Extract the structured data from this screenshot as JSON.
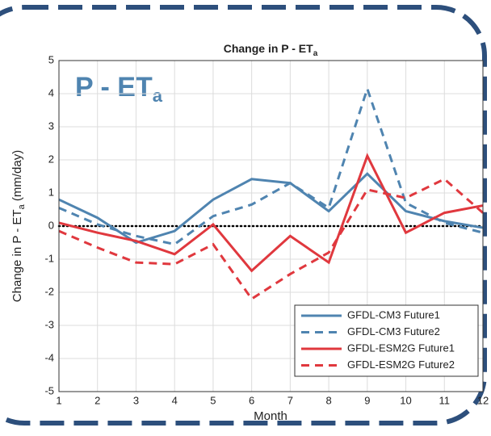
{
  "chart_data": {
    "type": "line",
    "title": {
      "text": "Change in P - ET",
      "sub": "a"
    },
    "overlay_label": {
      "text": "P - ET",
      "sub": "a"
    },
    "xlabel": "Month",
    "ylabel": {
      "text": "Change in P - ET",
      "sub": "a",
      "unit": " (mm/day)"
    },
    "x": [
      1,
      2,
      3,
      4,
      5,
      6,
      7,
      8,
      9,
      10,
      11,
      12
    ],
    "xlim": [
      1,
      12
    ],
    "xticks": [
      1,
      2,
      3,
      4,
      5,
      6,
      7,
      8,
      9,
      10,
      11,
      12
    ],
    "ylim": [
      -5,
      5
    ],
    "yticks": [
      -5,
      -4,
      -3,
      -2,
      -1,
      0,
      1,
      2,
      3,
      4,
      5
    ],
    "grid": true,
    "hline": 0,
    "legend": "lower right",
    "series": [
      {
        "name": "GFDL-CM3 Future1",
        "color": "#4f84b0",
        "dash": false,
        "values": [
          0.8,
          0.25,
          -0.5,
          -0.15,
          0.8,
          1.42,
          1.3,
          0.45,
          1.58,
          0.45,
          0.15,
          -0.05
        ]
      },
      {
        "name": "GFDL-CM3 Future2",
        "color": "#4f84b0",
        "dash": true,
        "values": [
          0.55,
          0.05,
          -0.3,
          -0.55,
          0.3,
          0.65,
          1.3,
          0.55,
          4.15,
          0.7,
          0.1,
          -0.2
        ]
      },
      {
        "name": "GFDL-ESM2G Future1",
        "color": "#e0383e",
        "dash": false,
        "values": [
          0.1,
          -0.2,
          -0.45,
          -0.85,
          0.05,
          -1.35,
          -0.3,
          -1.1,
          2.12,
          -0.2,
          0.4,
          0.62
        ]
      },
      {
        "name": "GFDL-ESM2G Future2",
        "color": "#e0383e",
        "dash": true,
        "values": [
          -0.15,
          -0.65,
          -1.1,
          -1.15,
          -0.55,
          -2.2,
          -1.45,
          -0.8,
          1.1,
          0.85,
          1.42,
          0.4
        ]
      }
    ]
  }
}
